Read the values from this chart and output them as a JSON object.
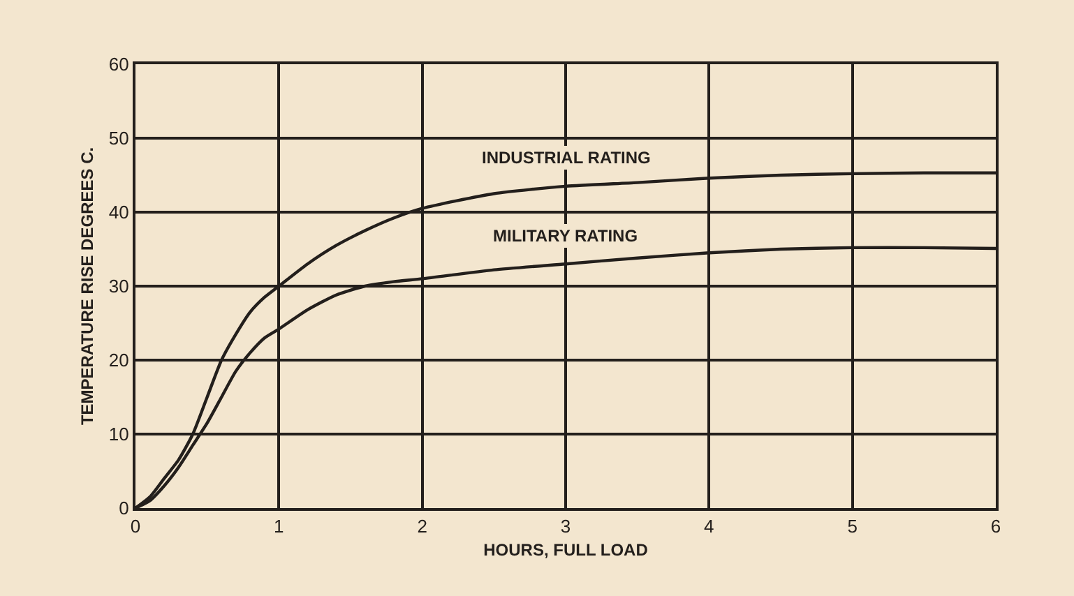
{
  "chart_data": {
    "type": "line",
    "xlabel": "HOURS, FULL LOAD",
    "ylabel": "TEMPERATURE RISE DEGREES C.",
    "series": [
      {
        "name": "INDUSTRIAL RATING",
        "color": "#231f1c",
        "x": [
          0,
          0.1,
          0.2,
          0.3,
          0.4,
          0.5,
          0.6,
          0.7,
          0.8,
          0.9,
          1.0,
          1.2,
          1.4,
          1.6,
          1.8,
          2.0,
          2.5,
          3.0,
          3.5,
          4.0,
          4.5,
          5.0,
          5.5,
          6.0
        ],
        "values": [
          0,
          1.5,
          4,
          6.5,
          10,
          15,
          20,
          23.5,
          26.5,
          28.5,
          30,
          33,
          35.5,
          37.5,
          39.2,
          40.5,
          42.5,
          43.5,
          44,
          44.6,
          45,
          45.2,
          45.3,
          45.3
        ]
      },
      {
        "name": "MILITARY RATING",
        "color": "#231f1c",
        "x": [
          0,
          0.1,
          0.2,
          0.3,
          0.4,
          0.5,
          0.6,
          0.7,
          0.8,
          0.9,
          1.0,
          1.2,
          1.4,
          1.6,
          1.8,
          2.0,
          2.5,
          3.0,
          3.5,
          4.0,
          4.5,
          5.0,
          5.5,
          6.0
        ],
        "values": [
          0,
          1,
          3,
          5.5,
          8.5,
          11.5,
          15,
          18.5,
          21,
          23,
          24.2,
          26.8,
          28.8,
          30,
          30.6,
          31,
          32.2,
          33,
          33.8,
          34.5,
          35,
          35.2,
          35.2,
          35.1
        ]
      }
    ],
    "xlim": [
      0,
      6
    ],
    "xticks": [
      0,
      1,
      2,
      3,
      4,
      5,
      6
    ],
    "ylim": [
      0,
      60
    ],
    "yticks": [
      0,
      10,
      20,
      30,
      40,
      50,
      60
    ],
    "grid": true,
    "marker": "none",
    "line_style": "solid"
  }
}
